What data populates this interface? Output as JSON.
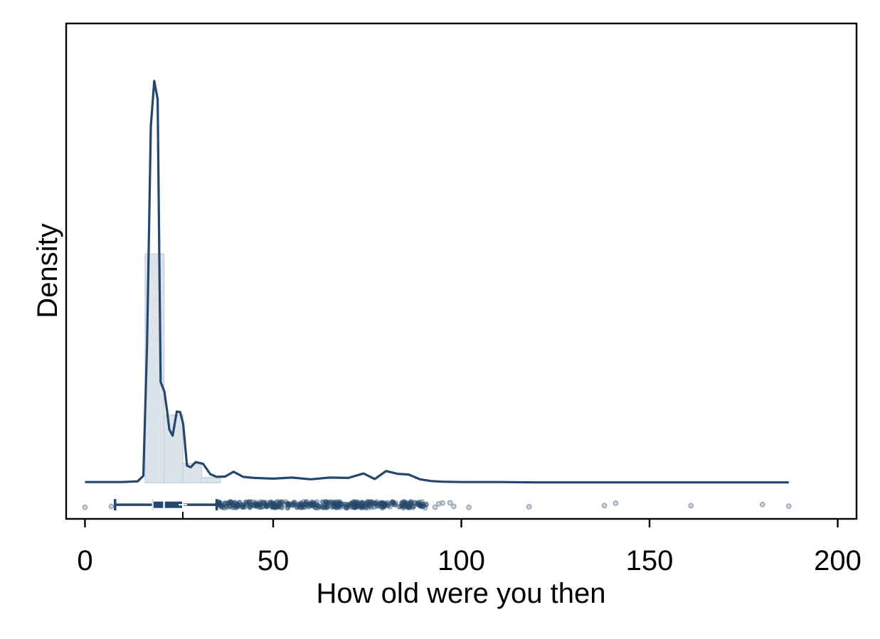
{
  "chart_data": {
    "type": "area",
    "title": "",
    "xlabel": "How old were you then",
    "ylabel": "Density",
    "xlim": [
      -5,
      205
    ],
    "ylim": [
      -0.0105,
      0.1335
    ],
    "xticks": [
      0,
      50,
      100,
      150,
      200
    ],
    "xtick_labels": [
      "0",
      "50",
      "100",
      "150",
      "200"
    ],
    "y_tick_labels_shown": false,
    "grid": false,
    "legend": "none",
    "colors": {
      "density_line": "#24476b",
      "histogram_fill": "#dde3ea",
      "histogram_edge": "#c9d1dc",
      "point": "#24476b",
      "outlier": "#8a9cb0"
    },
    "histogram": {
      "bin_edges": [
        16,
        21,
        26,
        31,
        36
      ],
      "densities": [
        0.0665,
        0.0197,
        0.0056,
        0.0015
      ]
    },
    "density_curve": {
      "x": [
        0,
        10,
        14,
        15.5,
        16.5,
        17.5,
        18.4,
        19.3,
        20.1,
        21.1,
        21.8,
        22.4,
        23.3,
        24.4,
        25.3,
        26.1,
        27.1,
        28.1,
        29.4,
        31.4,
        33.3,
        35,
        37.2,
        39.5,
        42,
        45,
        50,
        55,
        60,
        65,
        70,
        74,
        77,
        80,
        83,
        86,
        89,
        92,
        95,
        100,
        110,
        120,
        140,
        160,
        180,
        187
      ],
      "y": [
        0.0002,
        0.0002,
        0.0004,
        0.002,
        0.04,
        0.1035,
        0.1168,
        0.1115,
        0.0293,
        0.0265,
        0.021,
        0.0155,
        0.0137,
        0.0207,
        0.0205,
        0.0171,
        0.005,
        0.0045,
        0.006,
        0.0055,
        0.0025,
        0.0017,
        0.0018,
        0.0032,
        0.0017,
        0.0014,
        0.0012,
        0.0015,
        0.001,
        0.0015,
        0.0014,
        0.0027,
        0.0011,
        0.0034,
        0.0026,
        0.0024,
        0.001,
        0.0005,
        0.0003,
        0.0002,
        0.0002,
        0.0001,
        0.0001,
        0.0001,
        0.0001,
        0.0001
      ]
    },
    "boxplot": {
      "min": 8,
      "q1": 18,
      "median": 21,
      "mean": 26,
      "q3": 26,
      "whisker_high": 35,
      "mean_marker": 26
    },
    "points_dense_range": [
      35,
      91
    ],
    "outliers_x": [
      0,
      7,
      93,
      94,
      95,
      97,
      98,
      102,
      118,
      138,
      141,
      161,
      180,
      187
    ]
  }
}
